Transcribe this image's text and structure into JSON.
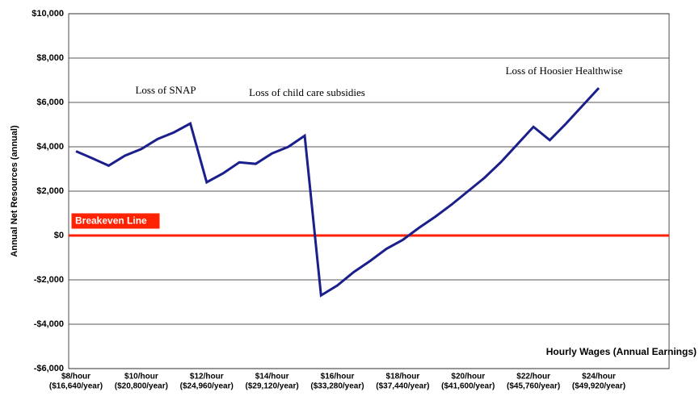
{
  "chart_data": {
    "type": "line",
    "y_label": "Annual Net Resources (annual)",
    "x_label": "Hourly Wages (Annual Earnings)",
    "annotations": [
      "Loss of SNAP",
      "Loss of child care subsidies",
      "Loss of Hoosier Healthwise"
    ],
    "reference_line": {
      "label": "Breakeven Line",
      "value": 0,
      "color": "#ff2200"
    },
    "categories": [
      [
        "$8/hour",
        "($16,640/year)"
      ],
      null,
      null,
      null,
      [
        "$10/hour",
        "($20,800/year)"
      ],
      null,
      null,
      null,
      [
        "$12/hour",
        "($24,960/year)"
      ],
      null,
      null,
      null,
      [
        "$14/hour",
        "($29,120/year)"
      ],
      null,
      null,
      null,
      [
        "$16/hour",
        "($33,280/year)"
      ],
      null,
      null,
      null,
      [
        "$18/hour",
        "($37,440/year)"
      ],
      null,
      null,
      null,
      [
        "$20/hour",
        "($41,600/year)"
      ],
      null,
      null,
      null,
      [
        "$22/hour",
        "($45,760/year)"
      ],
      null,
      null,
      null,
      [
        "$24/hour",
        "($49,920/year)"
      ]
    ],
    "series": [
      {
        "name": "Annual Net Resources",
        "color": "#1a1f8c",
        "values": [
          3800,
          3480,
          3150,
          3600,
          3900,
          4350,
          4650,
          5050,
          2400,
          2800,
          3300,
          3230,
          3700,
          4000,
          4500,
          -2700,
          -2250,
          -1650,
          -1150,
          -600,
          -200,
          350,
          850,
          1400,
          2000,
          2600,
          3300,
          4100,
          4900,
          4300,
          5050,
          5850,
          6650
        ]
      }
    ],
    "ylim": [
      -6000,
      10000
    ],
    "yticks": [
      {
        "value": -6000,
        "label": "-$6,000"
      },
      {
        "value": -4000,
        "label": "-$4,000"
      },
      {
        "value": -2000,
        "label": "-$2,000"
      },
      {
        "value": 0,
        "label": "$0"
      },
      {
        "value": 2000,
        "label": "$2,000"
      },
      {
        "value": 4000,
        "label": "$4,000"
      },
      {
        "value": 6000,
        "label": "$6,000"
      },
      {
        "value": 8000,
        "label": "$8,000"
      },
      {
        "value": 10000,
        "label": "$10,000"
      }
    ],
    "grid": true
  }
}
